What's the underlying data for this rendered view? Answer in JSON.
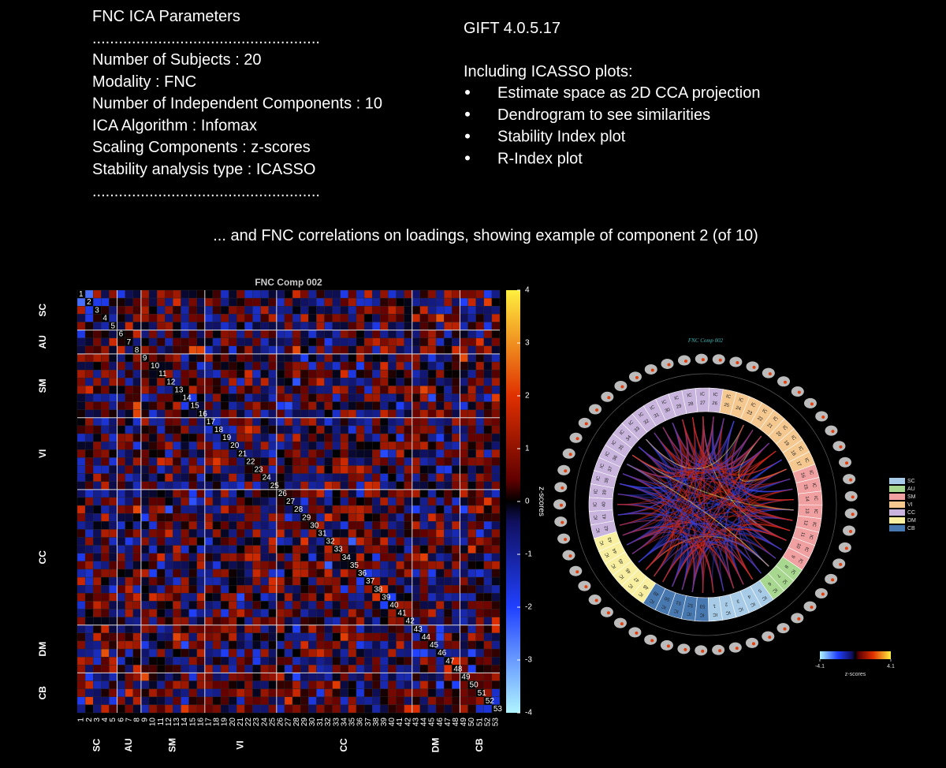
{
  "params": {
    "title": "FNC ICA Parameters",
    "separator": "....................................................",
    "lines": [
      "Number of Subjects : 20",
      "Modality : FNC",
      "Number of Independent Components : 10",
      "ICA Algorithm : Infomax",
      "Scaling Components : z-scores",
      "Stability analysis type : ICASSO"
    ]
  },
  "gift": {
    "version": "GIFT 4.0.5.17",
    "intro": "Including ICASSO plots:",
    "bullets": [
      "Estimate space as 2D CCA projection",
      "Dendrogram to see similarities",
      "Stability Index plot",
      "R-Index plot"
    ]
  },
  "caption": "... and FNC correlations on loadings, showing example of component 2 (of 10)",
  "matrix": {
    "title": "FNC Comp 002",
    "components": [
      1,
      2,
      3,
      4,
      5,
      6,
      7,
      8,
      9,
      10,
      11,
      12,
      13,
      14,
      15,
      16,
      17,
      18,
      19,
      20,
      21,
      22,
      23,
      24,
      25,
      26,
      27,
      28,
      29,
      30,
      31,
      32,
      33,
      34,
      35,
      36,
      37,
      38,
      39,
      40,
      41,
      42,
      43,
      44,
      45,
      46,
      47,
      48,
      49,
      50,
      51,
      52,
      53
    ],
    "networks": [
      {
        "name": "SC",
        "color": "#a8cce8",
        "first": 1,
        "last": 5
      },
      {
        "name": "AU",
        "color": "#a8d890",
        "first": 6,
        "last": 8
      },
      {
        "name": "SM",
        "color": "#f0a0a0",
        "first": 9,
        "last": 16
      },
      {
        "name": "VI",
        "color": "#f5c890",
        "first": 17,
        "last": 25
      },
      {
        "name": "CC",
        "color": "#c8b4dc",
        "first": 26,
        "last": 42
      },
      {
        "name": "DM",
        "color": "#f8f0a0",
        "first": 43,
        "last": 48
      },
      {
        "name": "CB",
        "color": "#4878b0",
        "first": 49,
        "last": 53
      }
    ],
    "colorbar": {
      "label": "z-scores",
      "lim": [
        -4,
        4
      ],
      "ticks": [
        -4,
        -3,
        -2,
        -1,
        0,
        1,
        2,
        3,
        4
      ]
    }
  },
  "connectogram": {
    "title": "FNC Comp 002",
    "prefix": "IC",
    "colorbar": {
      "label": "z-scores",
      "ticks": [
        -4.1,
        4.1
      ]
    }
  }
}
